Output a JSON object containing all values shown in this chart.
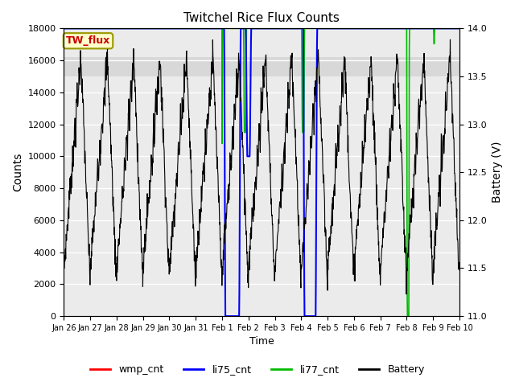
{
  "title": "Twitchel Rice Flux Counts",
  "xlabel": "Time",
  "ylabel_left": "Counts",
  "ylabel_right": "Battery (V)",
  "xlim": [
    0,
    15
  ],
  "ylim_left": [
    0,
    18000
  ],
  "ylim_right": [
    11.0,
    14.0
  ],
  "yticks_left": [
    0,
    2000,
    4000,
    6000,
    8000,
    10000,
    12000,
    14000,
    16000,
    18000
  ],
  "yticks_right": [
    11.0,
    11.5,
    12.0,
    12.5,
    13.0,
    13.5,
    14.0
  ],
  "xtick_labels": [
    "Jan 26",
    "Jan 27",
    "Jan 28",
    "Jan 29",
    "Jan 30",
    "Jan 31",
    "Feb 1",
    "Feb 2",
    "Feb 3",
    "Feb 4",
    "Feb 5",
    "Feb 6",
    "Feb 7",
    "Feb 8",
    "Feb 9",
    "Feb 10"
  ],
  "annotation_text": "TW_flux",
  "annotation_box_facecolor": "#ffffcc",
  "annotation_text_color": "#cc0000",
  "annotation_edge_color": "#999900",
  "background_color": "#ffffff",
  "plot_bg_color": "#ebebeb",
  "shaded_band_color": "#d8d8d8",
  "grid_color": "#ffffff",
  "li77_cnt_color": "#00bb00",
  "li75_cnt_color": "#0000ff",
  "wmp_cnt_color": "#ff0000",
  "battery_color": "#000000",
  "legend_labels": [
    "wmp_cnt",
    "li75_cnt",
    "li77_cnt",
    "Battery"
  ],
  "legend_colors": [
    "#ff0000",
    "#0000ff",
    "#00bb00",
    "#000000"
  ]
}
